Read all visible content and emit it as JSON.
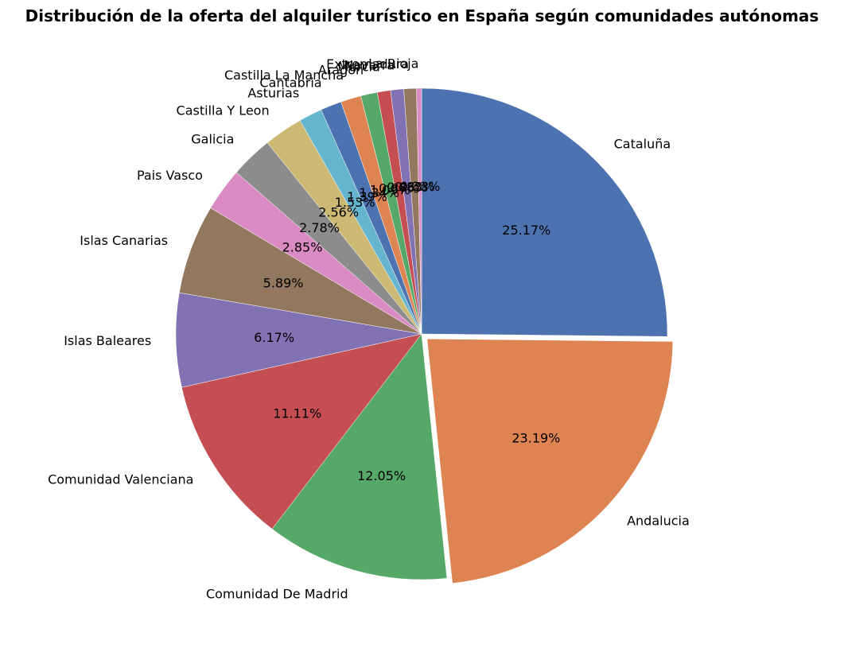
{
  "chart_data": {
    "type": "pie",
    "title": "Distribución de la oferta del alquiler turístico en España según comunidades autónomas",
    "start_angle": "90°, clockwise",
    "exploded": "Andalucia",
    "slices": [
      {
        "label": "Cataluña",
        "value": 25.17,
        "pct_label": "25.17%",
        "color": "#4c72b0"
      },
      {
        "label": "Andalucia",
        "value": 23.19,
        "pct_label": "23.19%",
        "color": "#dd8452"
      },
      {
        "label": "Comunidad De Madrid",
        "value": 12.05,
        "pct_label": "12.05%",
        "color": "#55a868"
      },
      {
        "label": "Comunidad Valenciana",
        "value": 11.11,
        "pct_label": "11.11%",
        "color": "#c44e52"
      },
      {
        "label": "Islas Baleares",
        "value": 6.17,
        "pct_label": "6.17%",
        "color": "#8172b3"
      },
      {
        "label": "Islas Canarias",
        "value": 5.89,
        "pct_label": "5.89%",
        "color": "#937860"
      },
      {
        "label": "Pais Vasco",
        "value": 2.85,
        "pct_label": "2.85%",
        "color": "#da8bc3"
      },
      {
        "label": "Galicia",
        "value": 2.78,
        "pct_label": "2.78%",
        "color": "#8c8c8c"
      },
      {
        "label": "Castilla Y Leon",
        "value": 2.56,
        "pct_label": "2.56%",
        "color": "#ccb974"
      },
      {
        "label": "Asturias",
        "value": 1.53,
        "pct_label": "1.53%",
        "color": "#64b5cd"
      },
      {
        "label": "Cantabria",
        "value": 1.39,
        "pct_label": "1.39%",
        "color": "#4c72b0"
      },
      {
        "label": "Castilla La Mancha",
        "value": 1.34,
        "pct_label": "1.34%",
        "color": "#dd8452"
      },
      {
        "label": "Aragon",
        "value": 1.09,
        "pct_label": "1.09%",
        "color": "#55a868"
      },
      {
        "label": "Murcia",
        "value": 0.87,
        "pct_label": "0.87%",
        "color": "#c44e52"
      },
      {
        "label": "Navarra",
        "value": 0.86,
        "pct_label": "0.86%",
        "color": "#8172b3"
      },
      {
        "label": "Extremadura",
        "value": 0.83,
        "pct_label": "0.83%",
        "color": "#937860"
      },
      {
        "label": "La Rioja",
        "value": 0.33,
        "pct_label": "0.33%",
        "color": "#da8bc3"
      }
    ]
  }
}
